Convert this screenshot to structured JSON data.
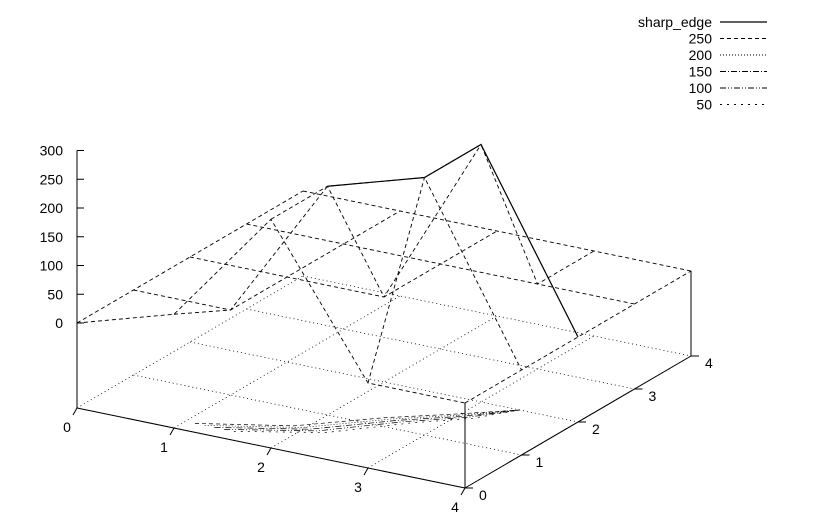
{
  "chart_data": {
    "type": "surface",
    "title": "",
    "x": [
      0,
      1,
      2,
      3,
      4
    ],
    "y": [
      0,
      1,
      2,
      3,
      4
    ],
    "grid": true,
    "legend_position": "top-right",
    "z_ticks": [
      "0",
      "50",
      "100",
      "150",
      "200",
      "250",
      "300"
    ],
    "x_ticks": [
      "0",
      "1",
      "2",
      "3",
      "4"
    ],
    "y_ticks": [
      "0",
      "1",
      "2",
      "3",
      "4"
    ],
    "zlim": [
      0,
      300
    ],
    "surface_name": "sharp_edge",
    "z": [
      [
        0,
        0,
        0,
        0,
        0
      ],
      [
        50,
        0,
        0,
        0,
        0
      ],
      [
        250,
        250,
        0,
        0,
        0
      ],
      [
        0,
        300,
        300,
        0,
        0
      ],
      [
        0,
        0,
        0,
        0,
        0
      ]
    ],
    "contour_levels": [
      "250",
      "200",
      "150",
      "100",
      "50"
    ],
    "series": [
      {
        "name": "sharp_edge",
        "style": "solid"
      },
      {
        "name": "250",
        "style": "dashed"
      },
      {
        "name": "200",
        "style": "dotted"
      },
      {
        "name": "150",
        "style": "dashdot"
      },
      {
        "name": "100",
        "style": "dashdotdot"
      },
      {
        "name": "50",
        "style": "sparse-dash"
      }
    ]
  }
}
